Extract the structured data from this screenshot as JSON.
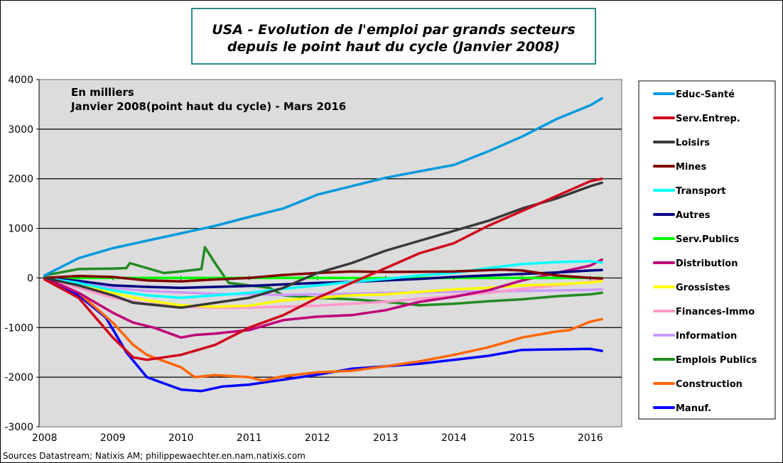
{
  "chart_data": {
    "type": "line",
    "title_lines": [
      "USA - Evolution de l'emploi par grands secteurs",
      "depuis le point haut du cycle (Janvier 2008)"
    ],
    "annotation_lines": [
      "En milliers",
      "Janvier 2008(point  haut du cycle)  - Mars 2016"
    ],
    "source": "Sources Datastream; Natixis AM; philippewaechter.en.nam.natixis.com",
    "xlim": [
      2007.92,
      2016.46
    ],
    "ylim": [
      -3000,
      4000
    ],
    "x_ticks": [
      2008,
      2009,
      2010,
      2011,
      2012,
      2013,
      2014,
      2015,
      2016
    ],
    "y_ticks": [
      -3000,
      -2000,
      -1000,
      0,
      1000,
      2000,
      3000,
      4000
    ],
    "grid": "horizontal",
    "legend_placement": "right",
    "plot_background": "#dcdcdc",
    "series": [
      {
        "name": "Educ-Santé",
        "color": "#0099dd",
        "points": [
          [
            2008,
            50
          ],
          [
            2008.5,
            400
          ],
          [
            2009,
            600
          ],
          [
            2009.5,
            750
          ],
          [
            2010,
            900
          ],
          [
            2010.5,
            1050
          ],
          [
            2011,
            1230
          ],
          [
            2011.5,
            1400
          ],
          [
            2012,
            1680
          ],
          [
            2012.5,
            1850
          ],
          [
            2013,
            2020
          ],
          [
            2013.5,
            2150
          ],
          [
            2014,
            2280
          ],
          [
            2014.5,
            2550
          ],
          [
            2015,
            2850
          ],
          [
            2015.5,
            3200
          ],
          [
            2016,
            3480
          ],
          [
            2016.17,
            3620
          ]
        ]
      },
      {
        "name": "Serv.Entrep.",
        "color": "#d0021b",
        "points": [
          [
            2008,
            -30
          ],
          [
            2008.5,
            -400
          ],
          [
            2009,
            -1200
          ],
          [
            2009.3,
            -1600
          ],
          [
            2009.5,
            -1650
          ],
          [
            2010,
            -1550
          ],
          [
            2010.5,
            -1350
          ],
          [
            2011,
            -1000
          ],
          [
            2011.5,
            -750
          ],
          [
            2012,
            -400
          ],
          [
            2012.5,
            -100
          ],
          [
            2013,
            200
          ],
          [
            2013.5,
            500
          ],
          [
            2014,
            700
          ],
          [
            2014.5,
            1050
          ],
          [
            2015,
            1350
          ],
          [
            2015.5,
            1650
          ],
          [
            2016,
            1950
          ],
          [
            2016.17,
            2000
          ]
        ]
      },
      {
        "name": "Loisirs",
        "color": "#383838",
        "points": [
          [
            2008,
            0
          ],
          [
            2008.5,
            -150
          ],
          [
            2009,
            -350
          ],
          [
            2009.3,
            -500
          ],
          [
            2010,
            -600
          ],
          [
            2010.5,
            -500
          ],
          [
            2011,
            -400
          ],
          [
            2011.5,
            -200
          ],
          [
            2012,
            100
          ],
          [
            2012.5,
            300
          ],
          [
            2013,
            550
          ],
          [
            2013.5,
            750
          ],
          [
            2014,
            950
          ],
          [
            2014.5,
            1150
          ],
          [
            2015,
            1400
          ],
          [
            2015.5,
            1600
          ],
          [
            2016,
            1850
          ],
          [
            2016.17,
            1920
          ]
        ]
      },
      {
        "name": "Mines",
        "color": "#800000",
        "points": [
          [
            2008,
            0
          ],
          [
            2008.5,
            40
          ],
          [
            2009,
            20
          ],
          [
            2009.5,
            -50
          ],
          [
            2010,
            -70
          ],
          [
            2010.5,
            -30
          ],
          [
            2011,
            0
          ],
          [
            2011.5,
            60
          ],
          [
            2012,
            100
          ],
          [
            2012.5,
            130
          ],
          [
            2013,
            120
          ],
          [
            2014,
            130
          ],
          [
            2014.7,
            170
          ],
          [
            2015,
            150
          ],
          [
            2015.5,
            50
          ],
          [
            2016,
            0
          ],
          [
            2016.17,
            -10
          ]
        ]
      },
      {
        "name": "Transport",
        "color": "#00ffff",
        "points": [
          [
            2008,
            0
          ],
          [
            2008.5,
            -100
          ],
          [
            2009,
            -250
          ],
          [
            2009.5,
            -350
          ],
          [
            2010,
            -400
          ],
          [
            2010.5,
            -350
          ],
          [
            2011,
            -300
          ],
          [
            2011.5,
            -220
          ],
          [
            2012,
            -150
          ],
          [
            2012.5,
            -80
          ],
          [
            2013,
            -20
          ],
          [
            2013.5,
            50
          ],
          [
            2014,
            100
          ],
          [
            2014.5,
            200
          ],
          [
            2015,
            280
          ],
          [
            2015.5,
            320
          ],
          [
            2016,
            340
          ],
          [
            2016.17,
            310
          ]
        ]
      },
      {
        "name": "Autres",
        "color": "#000080",
        "points": [
          [
            2008,
            0
          ],
          [
            2008.5,
            -60
          ],
          [
            2009,
            -150
          ],
          [
            2009.5,
            -180
          ],
          [
            2010,
            -200
          ],
          [
            2010.5,
            -180
          ],
          [
            2011,
            -160
          ],
          [
            2011.5,
            -130
          ],
          [
            2012,
            -100
          ],
          [
            2012.5,
            -80
          ],
          [
            2013,
            -50
          ],
          [
            2013.5,
            -20
          ],
          [
            2014,
            20
          ],
          [
            2014.5,
            50
          ],
          [
            2015,
            80
          ],
          [
            2015.5,
            110
          ],
          [
            2016,
            150
          ],
          [
            2016.17,
            160
          ]
        ]
      },
      {
        "name": "Serv.Publics",
        "color": "#00ff00",
        "points": [
          [
            2008,
            0
          ],
          [
            2009,
            0
          ],
          [
            2010,
            0
          ],
          [
            2011,
            0
          ],
          [
            2012,
            0
          ],
          [
            2013,
            -5
          ],
          [
            2014,
            0
          ],
          [
            2015,
            0
          ],
          [
            2016,
            0
          ],
          [
            2016.17,
            0
          ]
        ]
      },
      {
        "name": "Distribution",
        "color": "#c0007a",
        "points": [
          [
            2008,
            0
          ],
          [
            2008.5,
            -300
          ],
          [
            2009,
            -700
          ],
          [
            2009.3,
            -900
          ],
          [
            2009.6,
            -1000
          ],
          [
            2010,
            -1200
          ],
          [
            2010.2,
            -1150
          ],
          [
            2010.5,
            -1120
          ],
          [
            2011,
            -1050
          ],
          [
            2011.5,
            -850
          ],
          [
            2012,
            -780
          ],
          [
            2012.5,
            -750
          ],
          [
            2013,
            -650
          ],
          [
            2013.5,
            -480
          ],
          [
            2014,
            -380
          ],
          [
            2014.5,
            -250
          ],
          [
            2015,
            -50
          ],
          [
            2015.5,
            100
          ],
          [
            2016,
            250
          ],
          [
            2016.17,
            370
          ]
        ]
      },
      {
        "name": "Grossistes",
        "color": "#ffff00",
        "points": [
          [
            2008,
            0
          ],
          [
            2008.5,
            -150
          ],
          [
            2009,
            -300
          ],
          [
            2009.5,
            -450
          ],
          [
            2010,
            -550
          ],
          [
            2010.5,
            -580
          ],
          [
            2011,
            -560
          ],
          [
            2011.5,
            -450
          ],
          [
            2012,
            -400
          ],
          [
            2012.5,
            -350
          ],
          [
            2013,
            -330
          ],
          [
            2013.5,
            -280
          ],
          [
            2014,
            -230
          ],
          [
            2014.5,
            -200
          ],
          [
            2015,
            -150
          ],
          [
            2015.5,
            -130
          ],
          [
            2016,
            -90
          ],
          [
            2016.17,
            -70
          ]
        ]
      },
      {
        "name": "Finances-Immo",
        "color": "#ff99cc",
        "points": [
          [
            2008,
            0
          ],
          [
            2008.5,
            -200
          ],
          [
            2009,
            -400
          ],
          [
            2009.5,
            -520
          ],
          [
            2010,
            -580
          ],
          [
            2010.5,
            -600
          ],
          [
            2011,
            -600
          ],
          [
            2011.5,
            -580
          ],
          [
            2012,
            -560
          ],
          [
            2012.5,
            -520
          ],
          [
            2013,
            -480
          ],
          [
            2013.5,
            -420
          ],
          [
            2014,
            -360
          ],
          [
            2014.5,
            -300
          ],
          [
            2015,
            -220
          ],
          [
            2015.5,
            -150
          ],
          [
            2016,
            -80
          ],
          [
            2016.17,
            -30
          ]
        ]
      },
      {
        "name": "Information",
        "color": "#cc99ff",
        "points": [
          [
            2008,
            0
          ],
          [
            2008.5,
            -80
          ],
          [
            2009,
            -200
          ],
          [
            2009.5,
            -260
          ],
          [
            2010,
            -290
          ],
          [
            2010.5,
            -320
          ],
          [
            2011,
            -330
          ],
          [
            2011.5,
            -340
          ],
          [
            2012,
            -330
          ],
          [
            2012.5,
            -320
          ],
          [
            2013,
            -300
          ],
          [
            2013.5,
            -290
          ],
          [
            2014,
            -280
          ],
          [
            2014.5,
            -270
          ],
          [
            2015,
            -260
          ],
          [
            2015.5,
            -250
          ],
          [
            2016,
            -240
          ],
          [
            2016.17,
            -230
          ]
        ]
      },
      {
        "name": "Emplois Publics",
        "color": "#228b22",
        "points": [
          [
            2008,
            50
          ],
          [
            2008.5,
            180
          ],
          [
            2009,
            190
          ],
          [
            2009.2,
            200
          ],
          [
            2009.25,
            300
          ],
          [
            2009.5,
            200
          ],
          [
            2009.75,
            100
          ],
          [
            2010,
            130
          ],
          [
            2010.3,
            180
          ],
          [
            2010.35,
            620
          ],
          [
            2010.5,
            300
          ],
          [
            2010.7,
            -100
          ],
          [
            2011,
            -150
          ],
          [
            2011.3,
            -200
          ],
          [
            2011.5,
            -350
          ],
          [
            2012,
            -400
          ],
          [
            2012.5,
            -430
          ],
          [
            2013,
            -480
          ],
          [
            2013.5,
            -550
          ],
          [
            2014,
            -520
          ],
          [
            2014.5,
            -470
          ],
          [
            2015,
            -430
          ],
          [
            2015.5,
            -370
          ],
          [
            2016,
            -330
          ],
          [
            2016.17,
            -300
          ]
        ]
      },
      {
        "name": "Construction",
        "color": "#ff6600",
        "points": [
          [
            2008,
            0
          ],
          [
            2008.5,
            -300
          ],
          [
            2009,
            -900
          ],
          [
            2009.3,
            -1350
          ],
          [
            2009.5,
            -1550
          ],
          [
            2010,
            -1800
          ],
          [
            2010.2,
            -2000
          ],
          [
            2010.5,
            -1960
          ],
          [
            2011,
            -2000
          ],
          [
            2011.2,
            -2070
          ],
          [
            2011.5,
            -1980
          ],
          [
            2012,
            -1900
          ],
          [
            2012.5,
            -1870
          ],
          [
            2013,
            -1780
          ],
          [
            2013.5,
            -1680
          ],
          [
            2014,
            -1550
          ],
          [
            2014.5,
            -1400
          ],
          [
            2015,
            -1200
          ],
          [
            2015.5,
            -1080
          ],
          [
            2015.7,
            -1050
          ],
          [
            2016,
            -880
          ],
          [
            2016.17,
            -830
          ]
        ]
      },
      {
        "name": "Manuf.",
        "color": "#0000ff",
        "points": [
          [
            2008,
            0
          ],
          [
            2008.5,
            -350
          ],
          [
            2008.9,
            -800
          ],
          [
            2009.2,
            -1500
          ],
          [
            2009.5,
            -2000
          ],
          [
            2010,
            -2250
          ],
          [
            2010.3,
            -2280
          ],
          [
            2010.6,
            -2190
          ],
          [
            2011,
            -2150
          ],
          [
            2011.5,
            -2050
          ],
          [
            2012,
            -1950
          ],
          [
            2012.5,
            -1830
          ],
          [
            2013,
            -1780
          ],
          [
            2013.5,
            -1730
          ],
          [
            2014,
            -1650
          ],
          [
            2014.5,
            -1570
          ],
          [
            2015,
            -1450
          ],
          [
            2015.5,
            -1440
          ],
          [
            2016,
            -1430
          ],
          [
            2016.17,
            -1470
          ]
        ]
      }
    ]
  }
}
